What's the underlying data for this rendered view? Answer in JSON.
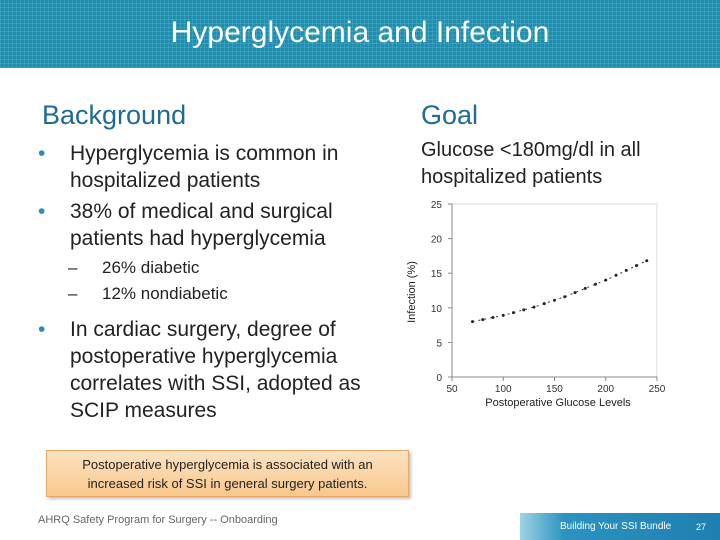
{
  "header": {
    "title": "Hyperglycemia and Infection"
  },
  "background": {
    "heading": "Background",
    "bullet1": "Hyperglycemia is common in hospitalized patients",
    "bullet2": "38% of medical and surgical patients had hyperglycemia",
    "sub1": "26% diabetic",
    "sub2": "12% nondiabetic",
    "bullet3": "In cardiac surgery, degree of postoperative hyperglycemia correlates with SSI, adopted as SCIP measures",
    "bullet_glyph": "•",
    "dash_glyph": "–"
  },
  "goal": {
    "heading": "Goal",
    "text": "Glucose <180mg/dl in all hospitalized patients"
  },
  "callout": {
    "text": "Postoperative hyperglycemia is associated with an increased risk of SSI in general surgery patients."
  },
  "footer": {
    "left": "AHRQ Safety Program for Surgery -- Onboarding",
    "right": "Building Your SSI Bundle",
    "page": "27"
  },
  "colors": {
    "header": "#1f8fb0",
    "heading": "#1f6b94",
    "bullet": "#2a8fb8",
    "callout": "#f8c88c"
  },
  "chart_data": {
    "type": "line",
    "title": "",
    "xlabel": "Postoperative Glucose Levels",
    "ylabel": "Infection (%)",
    "xlim": [
      50,
      250
    ],
    "ylim": [
      0,
      25
    ],
    "x_ticks": [
      50,
      100,
      150,
      200,
      250
    ],
    "y_ticks": [
      0,
      5,
      10,
      15,
      20,
      25
    ],
    "grid": false,
    "series": [
      {
        "x": [
          70,
          80,
          90,
          100,
          110,
          120,
          130,
          140,
          150,
          160,
          170,
          180,
          190,
          200,
          210,
          220,
          230,
          240
        ],
        "y": [
          8.0,
          8.3,
          8.6,
          8.9,
          9.3,
          9.7,
          10.1,
          10.6,
          11.1,
          11.6,
          12.2,
          12.8,
          13.4,
          14.0,
          14.7,
          15.4,
          16.1,
          16.8
        ]
      }
    ]
  }
}
